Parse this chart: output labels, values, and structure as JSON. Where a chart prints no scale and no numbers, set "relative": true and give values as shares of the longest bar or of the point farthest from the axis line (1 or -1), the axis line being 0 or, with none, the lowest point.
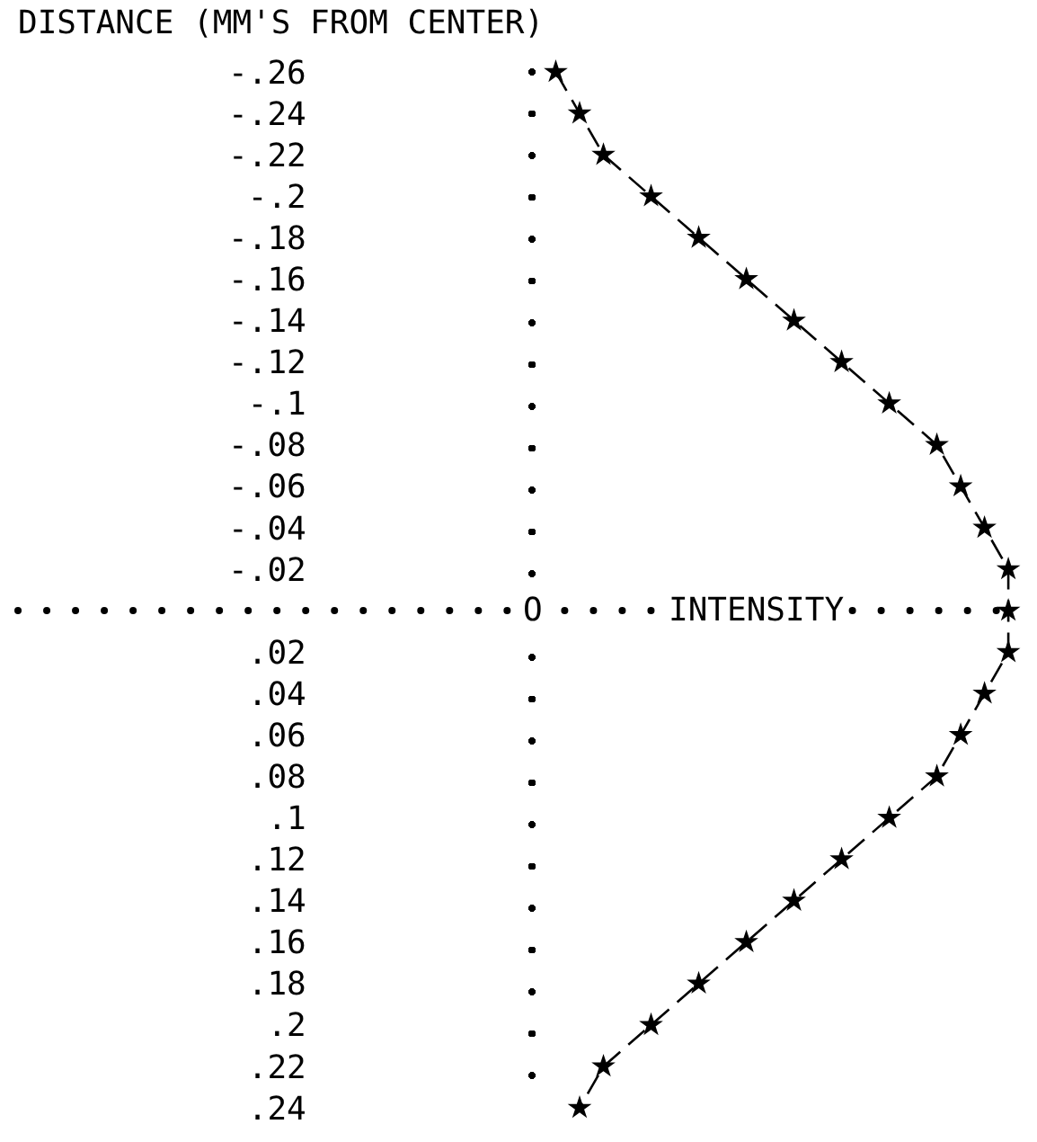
{
  "chart_data": {
    "type": "line",
    "orientation": "horizontal",
    "relative": true,
    "title": "DISTANCE (MM'S FROM CENTER)",
    "xlabel": "INTENSITY",
    "annotations": [
      {
        "text": "O",
        "x": 0,
        "y": 0
      }
    ],
    "x": [
      -0.26,
      -0.24,
      -0.22,
      -0.2,
      -0.18,
      -0.16,
      -0.14,
      -0.12,
      -0.1,
      -0.08,
      -0.06,
      -0.04,
      -0.02,
      0,
      0.02,
      0.04,
      0.06,
      0.08,
      0.1,
      0.12,
      0.14,
      0.16,
      0.18,
      0.2,
      0.22,
      0.24
    ],
    "values": [
      0.05,
      0.1,
      0.15,
      0.25,
      0.35,
      0.45,
      0.55,
      0.65,
      0.75,
      0.85,
      0.9,
      0.95,
      1,
      1,
      1,
      0.95,
      0.9,
      0.85,
      0.75,
      0.65,
      0.55,
      0.45,
      0.35,
      0.25,
      0.15,
      0.1
    ],
    "color": "#000000",
    "marker": "star",
    "line_style": "dashed",
    "tick_labels": "y",
    "ylim": [
      0.24,
      -0.26
    ],
    "yticks": [
      {
        "value": -0.26,
        "label": "-.26"
      },
      {
        "value": -0.24,
        "label": "-.24"
      },
      {
        "value": -0.22,
        "label": "-.22"
      },
      {
        "value": -0.2,
        "label": "-.2"
      },
      {
        "value": -0.18,
        "label": "-.18"
      },
      {
        "value": -0.16,
        "label": "-.16"
      },
      {
        "value": -0.14,
        "label": "-.14"
      },
      {
        "value": -0.12,
        "label": "-.12"
      },
      {
        "value": -0.1,
        "label": "-.1"
      },
      {
        "value": -0.08,
        "label": "-.08"
      },
      {
        "value": -0.06,
        "label": "-.06"
      },
      {
        "value": -0.04,
        "label": "-.04"
      },
      {
        "value": -0.02,
        "label": "-.02"
      },
      {
        "value": 0.02,
        "label": ".02"
      },
      {
        "value": 0.04,
        "label": ".04"
      },
      {
        "value": 0.06,
        "label": ".06"
      },
      {
        "value": 0.08,
        "label": ".08"
      },
      {
        "value": 0.1,
        "label": ".1"
      },
      {
        "value": 0.12,
        "label": ".12"
      },
      {
        "value": 0.14,
        "label": ".14"
      },
      {
        "value": 0.16,
        "label": ".16"
      },
      {
        "value": 0.18,
        "label": ".18"
      },
      {
        "value": 0.2,
        "label": ".2"
      },
      {
        "value": 0.22,
        "label": ".22"
      },
      {
        "value": 0.24,
        "label": ".24"
      }
    ],
    "ref_lines": [
      {
        "axis": "y",
        "value": 0,
        "color": "#000000",
        "line_style": "dotted"
      }
    ]
  }
}
